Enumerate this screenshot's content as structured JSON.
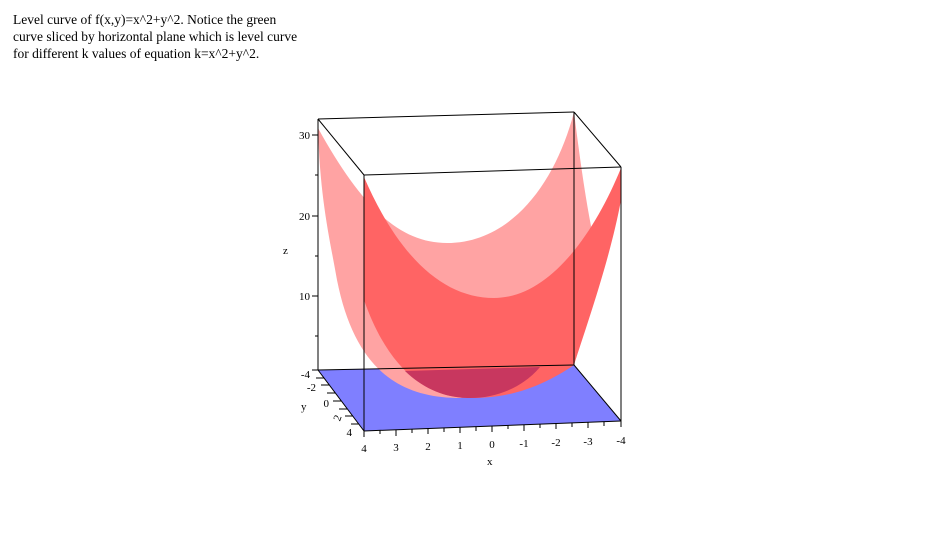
{
  "caption": {
    "lines": [
      "Level curve of f(x,y)=x^2+y^2. Notice the green",
      "curve sliced by horizontal plane which is level curve",
      "for different k values of equation k=x^2+y^2."
    ]
  },
  "plot": {
    "function": "x^2+y^2",
    "x_range": [
      -4,
      4
    ],
    "y_range": [
      -4,
      4
    ],
    "z_range": [
      -4,
      32
    ],
    "slice_plane_z": -4,
    "axes": {
      "x_label": "x",
      "y_label": "y",
      "z_label": "z",
      "x_ticks": [
        "4",
        "3",
        "2",
        "1",
        "0",
        "-1",
        "-2",
        "-3",
        "-4"
      ],
      "y_ticks": [
        "-2",
        "0",
        "2",
        "4"
      ],
      "z_ticks": [
        "30",
        "20",
        "10",
        "-4"
      ]
    },
    "colors": {
      "surface_back": "#ffa3a3",
      "surface_front": "#ff6464",
      "surface_overlap": "#c8375f",
      "plane": "#7f7fff",
      "frame": "#000000"
    }
  }
}
